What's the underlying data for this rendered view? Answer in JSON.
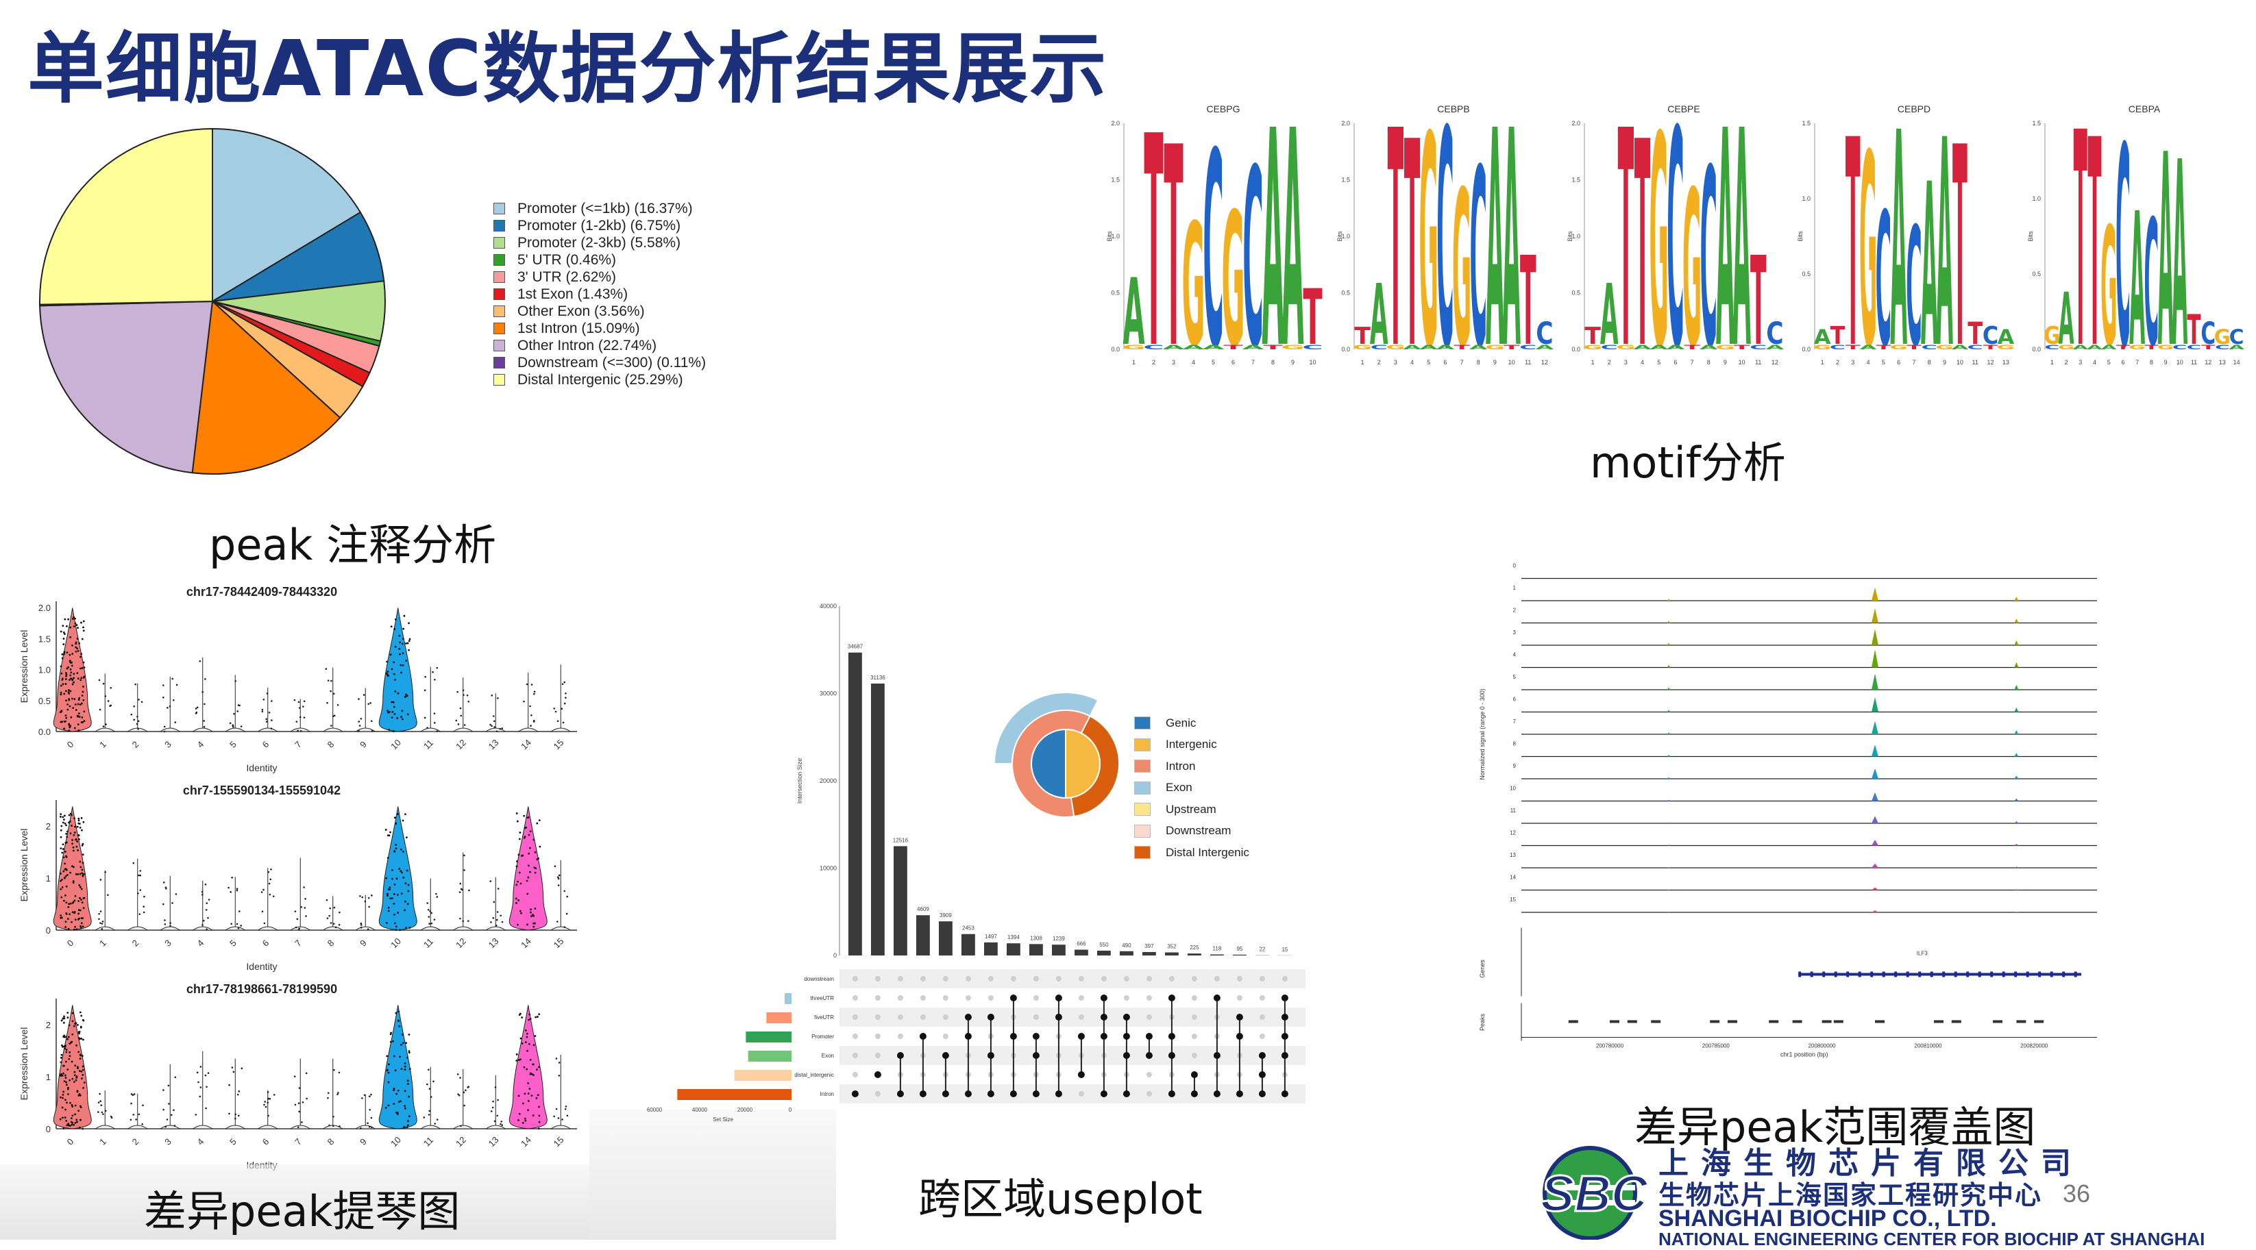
{
  "slide": {
    "title": "单细胞ATAC数据分析结果展示",
    "page_number": "36"
  },
  "captions": {
    "peak_annotation": "peak 注释分析",
    "motif": "motif分析",
    "violin": "差异peak提琴图",
    "upset": "跨区域useplot",
    "coverage": "差异peak范围覆盖图"
  },
  "logo": {
    "letters": "SBC",
    "cn_line1": "上海生物芯片有限公司",
    "cn_line2": "生物芯片上海国家工程研究中心",
    "en_line1": "SHANGHAI BIOCHIP CO., LTD.",
    "en_line2": "NATIONAL ENGINEERING CENTER FOR BIOCHIP AT SHANGHAI"
  },
  "colors": {
    "title": "#1c2f7a",
    "violin_red": "#f07b7b",
    "violin_blue": "#1ba3e6",
    "violin_pink": "#ff5fc8",
    "motif_A": "#3aa33a",
    "motif_C": "#1f62c9",
    "motif_G": "#f2b01e",
    "motif_T": "#d6223a"
  },
  "chart_data": [
    {
      "type": "pie",
      "id": "peak_annotation_pie",
      "labels": [
        "Promoter (<=1kb) (16.37%)",
        "Promoter (1-2kb) (6.75%)",
        "Promoter (2-3kb) (5.58%)",
        "5' UTR (0.46%)",
        "3' UTR (2.62%)",
        "1st Exon (1.43%)",
        "Other Exon (3.56%)",
        "1st Intron (15.09%)",
        "Other Intron (22.74%)",
        "Downstream (<=300) (0.11%)",
        "Distal Intergenic (25.29%)"
      ],
      "values": [
        16.37,
        6.75,
        5.58,
        0.46,
        2.62,
        1.43,
        3.56,
        15.09,
        22.74,
        0.11,
        25.29
      ],
      "colors": [
        "#a6cee3",
        "#1f78b4",
        "#b2df8a",
        "#33a02c",
        "#fb9a99",
        "#e31a1c",
        "#fdbf6f",
        "#ff7f00",
        "#cab2d6",
        "#6a3d9a",
        "#ffff99"
      ],
      "legend": "right"
    },
    {
      "type": "bar",
      "id": "motif_logos",
      "ylabel": "Bits",
      "motifs": [
        {
          "title": "CEBPG",
          "ymax": 2.0,
          "yticks": [
            "0.0",
            "0.5",
            "1.0",
            "1.5",
            "2.0"
          ],
          "xticks": [
            "1",
            "2",
            "3",
            "4",
            "5",
            "6",
            "7",
            "8",
            "9",
            "10"
          ],
          "top_letters": [
            "A",
            "T",
            "T",
            "G",
            "C",
            "G",
            "C",
            "A",
            "A",
            "T"
          ],
          "heights": [
            0.6,
            1.9,
            1.8,
            1.1,
            1.75,
            1.2,
            1.6,
            1.95,
            1.95,
            0.5
          ],
          "bottom_letters": [
            "G",
            "C",
            "A",
            "A",
            "A",
            "T",
            "A",
            "T",
            "G",
            "C"
          ]
        },
        {
          "title": "CEBPB",
          "ymax": 2.0,
          "yticks": [
            "0.0",
            "0.5",
            "1.0",
            "1.5",
            "2.0"
          ],
          "xticks": [
            "1",
            "2",
            "3",
            "4",
            "5",
            "6",
            "7",
            "8",
            "9",
            "10",
            "11",
            "12"
          ],
          "top_letters": [
            "T",
            "A",
            "T",
            "T",
            "G",
            "C",
            "G",
            "C",
            "A",
            "A",
            "T",
            "C"
          ],
          "heights": [
            0.15,
            0.55,
            1.95,
            1.85,
            1.9,
            1.95,
            1.4,
            1.6,
            1.95,
            1.95,
            0.8,
            0.2
          ],
          "bottom_letters": [
            "G",
            "C",
            "G",
            "A",
            "A",
            "A",
            "T",
            "A",
            "G",
            "T",
            "C",
            "A"
          ]
        },
        {
          "title": "CEBPE",
          "ymax": 2.0,
          "yticks": [
            "0.0",
            "0.5",
            "1.0",
            "1.5",
            "2.0"
          ],
          "xticks": [
            "1",
            "2",
            "3",
            "4",
            "5",
            "6",
            "7",
            "8",
            "9",
            "10",
            "11",
            "12"
          ],
          "top_letters": [
            "T",
            "A",
            "T",
            "T",
            "G",
            "C",
            "G",
            "C",
            "A",
            "A",
            "T",
            "C"
          ],
          "heights": [
            0.15,
            0.55,
            1.95,
            1.85,
            1.9,
            1.95,
            1.4,
            1.6,
            1.95,
            1.95,
            0.8,
            0.2
          ],
          "bottom_letters": [
            "G",
            "C",
            "G",
            "A",
            "A",
            "A",
            "T",
            "A",
            "G",
            "T",
            "C",
            "A"
          ]
        },
        {
          "title": "CEBPD",
          "ymax": 1.5,
          "yticks": [
            "0.0",
            "0.5",
            "1.0",
            "1.5"
          ],
          "xticks": [
            "1",
            "2",
            "3",
            "4",
            "5",
            "6",
            "7",
            "8",
            "9",
            "10",
            "11",
            "12",
            "13"
          ],
          "top_letters": [
            "A",
            "T",
            "T",
            "G",
            "C",
            "A",
            "C",
            "A",
            "A",
            "T",
            "T",
            "C",
            "A"
          ],
          "heights": [
            0.1,
            0.12,
            1.4,
            1.3,
            0.9,
            1.45,
            0.8,
            1.1,
            1.4,
            1.35,
            0.15,
            0.12,
            0.1
          ],
          "bottom_letters": [
            "G",
            "C",
            "T",
            "A",
            "T",
            "G",
            "T",
            "C",
            "G",
            "A",
            "C",
            "T",
            "G"
          ]
        },
        {
          "title": "CEBPA",
          "ymax": 1.5,
          "yticks": [
            "0.0",
            "0.5",
            "1.0",
            "1.5"
          ],
          "xticks": [
            "1",
            "2",
            "3",
            "4",
            "5",
            "6",
            "7",
            "8",
            "9",
            "10",
            "11",
            "12",
            "13",
            "14"
          ],
          "top_letters": [
            "G",
            "A",
            "T",
            "T",
            "G",
            "C",
            "A",
            "C",
            "A",
            "A",
            "T",
            "C",
            "G",
            "C"
          ],
          "heights": [
            0.12,
            0.35,
            1.45,
            1.4,
            0.8,
            1.35,
            0.9,
            0.85,
            1.3,
            1.25,
            0.2,
            0.15,
            0.1,
            0.1
          ],
          "bottom_letters": [
            "C",
            "G",
            "A",
            "A",
            "A",
            "T",
            "G",
            "T",
            "G",
            "C",
            "C",
            "T",
            "C",
            "A"
          ]
        }
      ]
    },
    {
      "type": "scatter",
      "id": "violin_plots",
      "xlabel": "Identity",
      "ylabel": "Expression Level",
      "categories": [
        "0",
        "1",
        "2",
        "3",
        "4",
        "5",
        "6",
        "7",
        "8",
        "9",
        "10",
        "11",
        "12",
        "13",
        "14",
        "15"
      ],
      "panels": [
        {
          "title": "chr17-78442409-78443320",
          "yticks": [
            "0.0",
            "0.5",
            "1.0",
            "1.5",
            "2.0"
          ],
          "ymax": 2.1,
          "highlight": {
            "0": "red",
            "10": "blue"
          }
        },
        {
          "title": "chr7-155590134-155591042",
          "yticks": [
            "0",
            "1",
            "2"
          ],
          "ymax": 2.5,
          "highlight": {
            "0": "red",
            "10": "blue",
            "14": "pink"
          }
        },
        {
          "title": "chr17-78198661-78199590",
          "yticks": [
            "0",
            "1",
            "2"
          ],
          "ymax": 2.5,
          "highlight": {
            "0": "red",
            "10": "blue",
            "14": "pink"
          }
        }
      ]
    },
    {
      "type": "bar",
      "id": "upset_plot",
      "ylabel": "Intersection Size",
      "yticks": [
        "0",
        "10000",
        "20000",
        "30000",
        "40000"
      ],
      "ymax": 40000,
      "values": [
        34687,
        31136,
        12516,
        4609,
        3909,
        2453,
        1497,
        1394,
        1308,
        1239,
        666,
        550,
        490,
        397,
        352,
        225,
        118,
        95,
        22,
        15
      ],
      "set_names": [
        "downstream",
        "threeUTR",
        "fiveUTR",
        "Promoter",
        "Exon",
        "distal_intergenic",
        "Intron"
      ],
      "set_colors": [
        "#ffffff",
        "#9ecae1",
        "#fc9272",
        "#31a354",
        "#74c476",
        "#fdd0a2",
        "#e6550d"
      ],
      "set_sizes": [
        0,
        3000,
        11000,
        20000,
        19000,
        25000,
        50000
      ],
      "set_size_label": "Set Size",
      "set_size_ticks": [
        "60000",
        "40000",
        "20000",
        "0"
      ]
    },
    {
      "type": "pie",
      "id": "upset_venn_pie",
      "labels": [
        "Genic",
        "Intergenic",
        "Intron",
        "Exon",
        "Upstream",
        "Downstream",
        "Distal Intergenic"
      ],
      "colors": [
        "#2b7bba",
        "#f5b942",
        "#f08a6c",
        "#9ecae1",
        "#fde58a",
        "#fbd9cf",
        "#d95f0e"
      ],
      "legend": "right"
    },
    {
      "type": "area",
      "id": "coverage_plot",
      "ylabel": "Normalized signal (range 0 - 300)",
      "track_labels": [
        "0",
        "1",
        "2",
        "3",
        "4",
        "5",
        "6",
        "7",
        "8",
        "9",
        "10",
        "11",
        "12",
        "13",
        "14",
        "15"
      ],
      "genes_label": "Genes",
      "peaks_label": "Peaks",
      "gene_name": "ILF3",
      "xlabel": "chr1 position (bp)",
      "xticks": [
        "200780000",
        "200785000",
        "200800000",
        "200810000",
        "200820000"
      ]
    }
  ]
}
